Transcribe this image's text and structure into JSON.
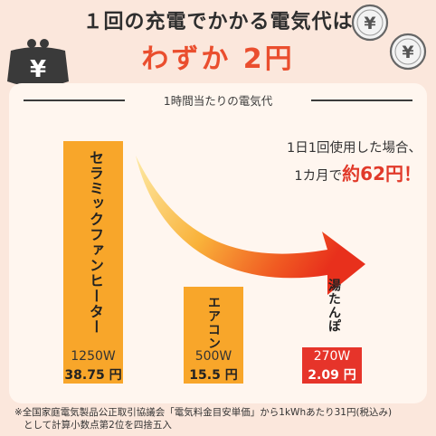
{
  "header": {
    "line1": "１回の充電でかかる電気代は",
    "line2": "わずか 2円"
  },
  "panel_title": "1時間当たりの電気代",
  "callout": {
    "line1": "1日1回使用した場合、",
    "line2_prefix": "1カ月で",
    "line2_highlight": "約62円！"
  },
  "icons": [
    "wallet-yen-icon",
    "yen-coin-icon",
    "yen-coin-icon"
  ],
  "colors": {
    "background": "#fbe7dc",
    "bar_orange": "#f8a62a",
    "bar_red": "#e6342a",
    "accent_red": "#ea4e2e"
  },
  "chart_data": {
    "type": "bar",
    "categories": [
      "セラミックファンヒーター",
      "エアコン",
      "湯たんぽ"
    ],
    "values": [
      38.75,
      15.5,
      2.09
    ],
    "watt_labels": [
      "1250W",
      "500W",
      "270W"
    ],
    "value_labels": [
      "38.75 円",
      "15.5 円",
      "2.09 円"
    ],
    "bar_colors": [
      "#f8a62a",
      "#f8a62a",
      "#e6342a"
    ],
    "title": "1時間当たりの電気代",
    "xlabel": "",
    "ylabel": "",
    "ylim": [
      0,
      38.75
    ],
    "grid": false
  },
  "footnote": {
    "line1": "※全国家庭電気製品公正取引協議会「電気料金目安単価」から1kWhあたり31円(税込み)",
    "line2": "として計算小数点第2位を四捨五入"
  }
}
